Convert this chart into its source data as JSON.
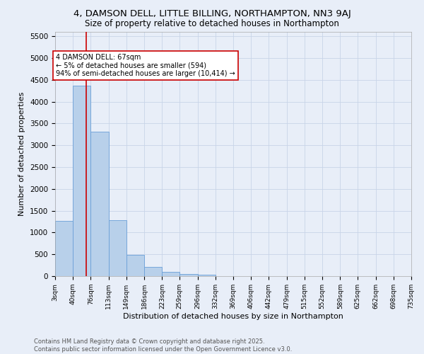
{
  "title": "4, DAMSON DELL, LITTLE BILLING, NORTHAMPTON, NN3 9AJ",
  "subtitle": "Size of property relative to detached houses in Northampton",
  "xlabel": "Distribution of detached houses by size in Northampton",
  "ylabel": "Number of detached properties",
  "footer_line1": "Contains HM Land Registry data © Crown copyright and database right 2025.",
  "footer_line2": "Contains public sector information licensed under the Open Government Licence v3.0.",
  "bar_edges": [
    3,
    40,
    76,
    113,
    149,
    186,
    223,
    259,
    296,
    332,
    369,
    406,
    442,
    479,
    515,
    552,
    589,
    625,
    662,
    698,
    735
  ],
  "bar_heights": [
    1270,
    4360,
    3310,
    1280,
    490,
    215,
    90,
    55,
    40,
    0,
    0,
    0,
    0,
    0,
    0,
    0,
    0,
    0,
    0,
    0
  ],
  "bar_color": "#b8d0ea",
  "bar_edge_color": "#6a9fd8",
  "grid_color": "#c8d4e8",
  "bg_color": "#e8eef8",
  "annotation_text": "4 DAMSON DELL: 67sqm\n← 5% of detached houses are smaller (594)\n94% of semi-detached houses are larger (10,414) →",
  "vline_x": 67,
  "vline_color": "#cc0000",
  "annotation_box_edgecolor": "#cc0000",
  "ylim": [
    0,
    5600
  ],
  "yticks": [
    0,
    500,
    1000,
    1500,
    2000,
    2500,
    3000,
    3500,
    4000,
    4500,
    5000,
    5500
  ],
  "tick_labels": [
    "3sqm",
    "40sqm",
    "76sqm",
    "113sqm",
    "149sqm",
    "186sqm",
    "223sqm",
    "259sqm",
    "296sqm",
    "332sqm",
    "369sqm",
    "406sqm",
    "442sqm",
    "479sqm",
    "515sqm",
    "552sqm",
    "589sqm",
    "625sqm",
    "662sqm",
    "698sqm",
    "735sqm"
  ]
}
